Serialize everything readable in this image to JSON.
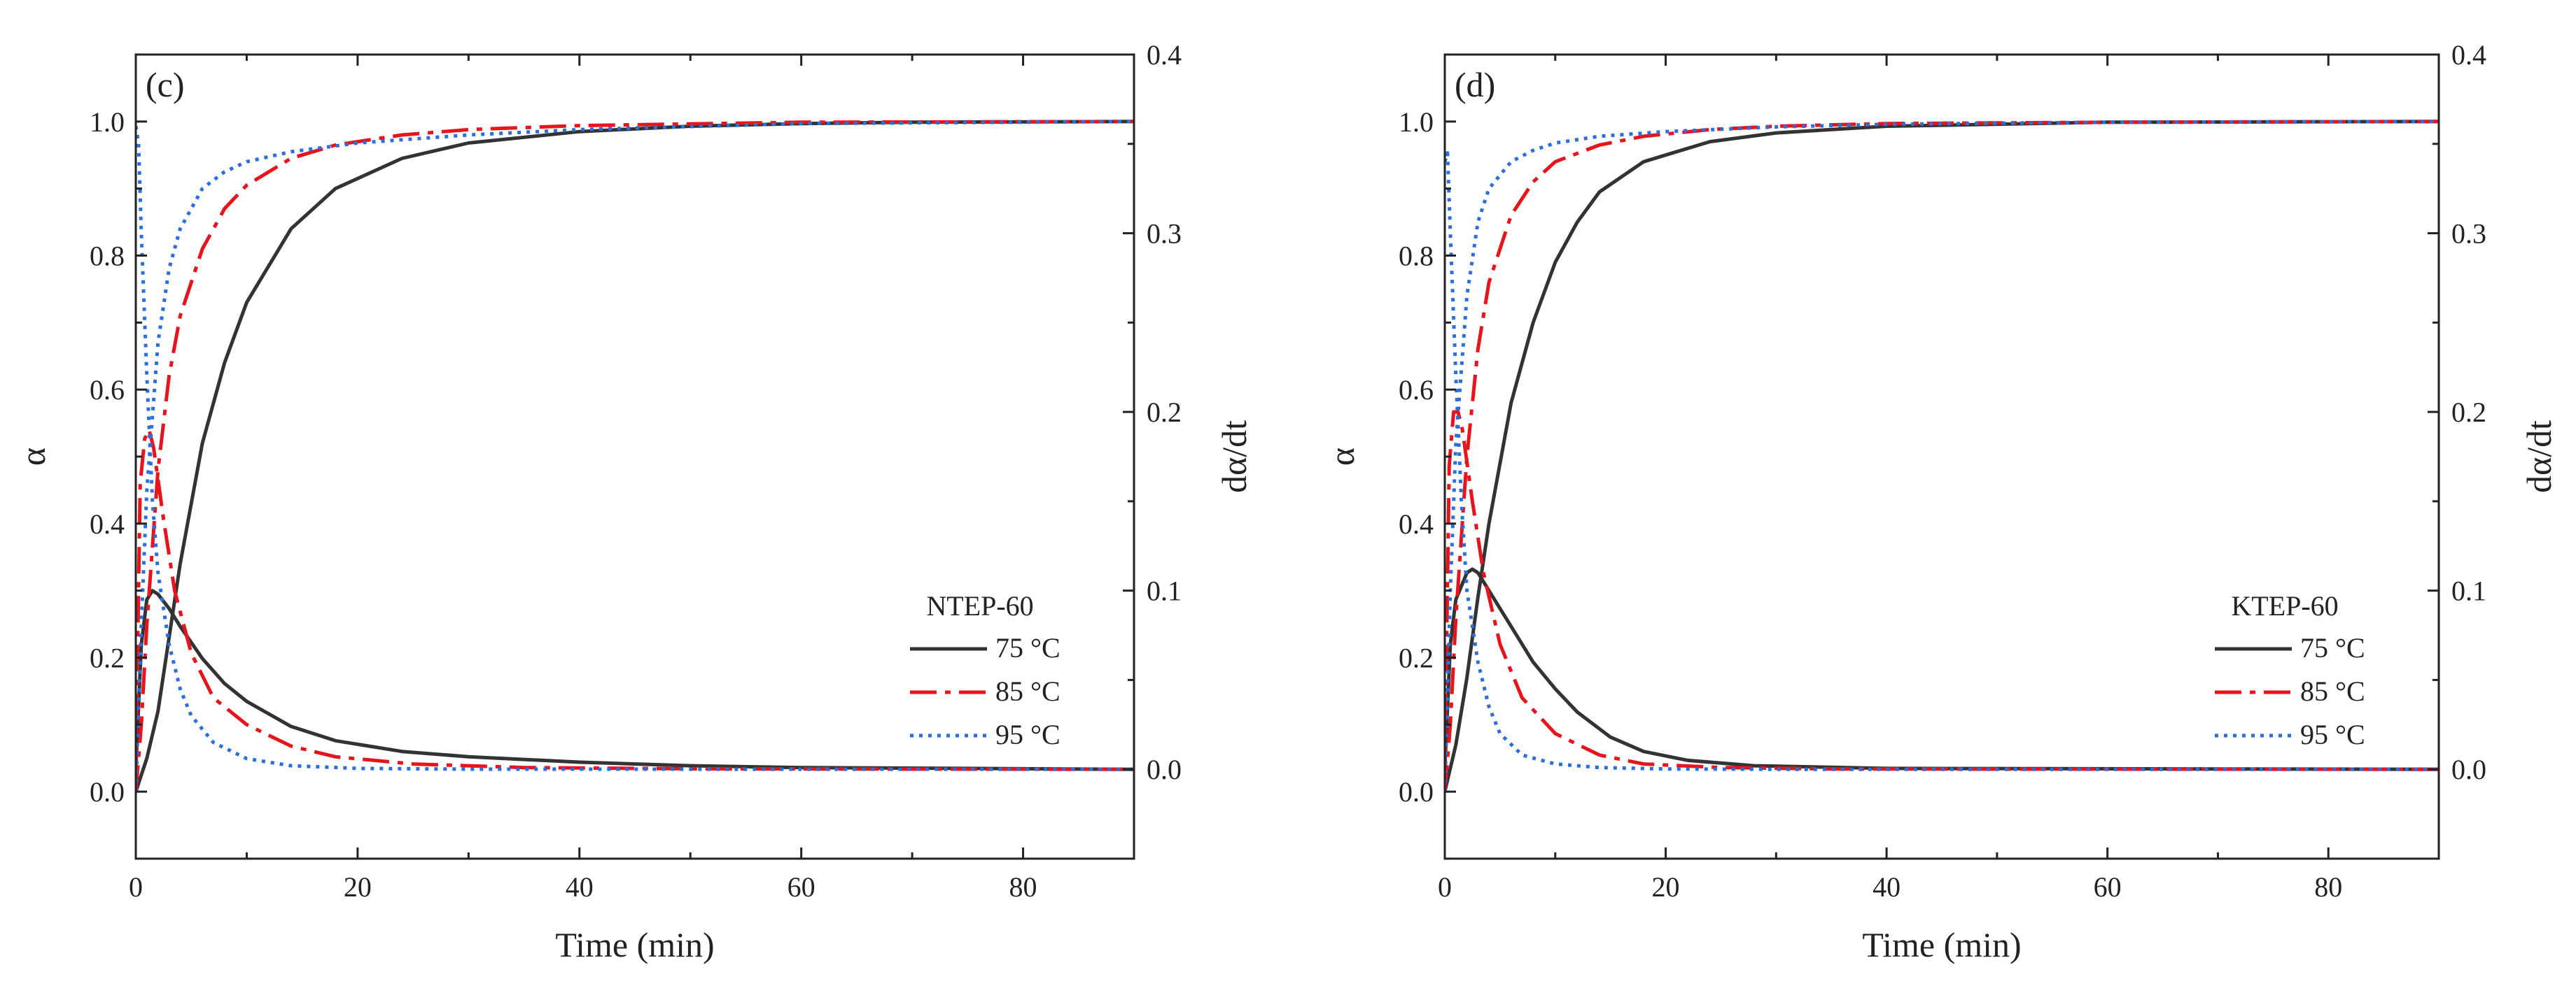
{
  "chart_data": [
    {
      "type": "line",
      "panel_label": "(c)",
      "xlabel": "Time (min)",
      "ylabel": "α",
      "ylabel_right": "dα/dt",
      "xlim": [
        0,
        90
      ],
      "ylim": [
        -0.1,
        1.1
      ],
      "ylim_right": [
        -0.05,
        0.4
      ],
      "x_ticks": [
        0,
        20,
        40,
        60,
        80
      ],
      "y_ticks": [
        0.0,
        0.2,
        0.4,
        0.6,
        0.8,
        1.0
      ],
      "y_tick_labels": [
        "0.0",
        "0.2",
        "0.4",
        "0.6",
        "0.8",
        "1.0"
      ],
      "y_right_ticks": [
        0.0,
        0.1,
        0.2,
        0.3,
        0.4
      ],
      "y_right_tick_labels": [
        "0.0",
        "0.1",
        "0.2",
        "0.3",
        "0.4"
      ],
      "legend_title": "NTEP-60",
      "legend_position": "lower-right",
      "series": [
        {
          "name": "75 °C",
          "color": "#333333",
          "dash": "solid",
          "alpha_x": [
            0,
            1,
            2,
            4,
            6,
            8,
            10,
            14,
            18,
            24,
            30,
            40,
            50,
            60,
            70,
            90
          ],
          "alpha": [
            0.0,
            0.05,
            0.12,
            0.34,
            0.52,
            0.64,
            0.73,
            0.84,
            0.9,
            0.945,
            0.968,
            0.985,
            0.993,
            0.997,
            0.999,
            1.0
          ],
          "rate_x": [
            0,
            0.5,
            1,
            1.5,
            2,
            3,
            4,
            6,
            8,
            10,
            14,
            18,
            24,
            30,
            40,
            50,
            60,
            90
          ],
          "rate": [
            0.0,
            0.07,
            0.095,
            0.1,
            0.098,
            0.09,
            0.08,
            0.062,
            0.048,
            0.038,
            0.024,
            0.016,
            0.01,
            0.007,
            0.004,
            0.002,
            0.001,
            0.0
          ]
        },
        {
          "name": "85 °C",
          "color": "#e8141c",
          "dash": "dashdot",
          "alpha_x": [
            0,
            0.5,
            1,
            2,
            3,
            4,
            6,
            8,
            10,
            14,
            18,
            24,
            30,
            40,
            60,
            90
          ],
          "alpha": [
            0.0,
            0.1,
            0.25,
            0.48,
            0.62,
            0.71,
            0.81,
            0.87,
            0.905,
            0.945,
            0.965,
            0.98,
            0.988,
            0.994,
            0.999,
            1.0
          ],
          "rate_x": [
            0,
            0.4,
            0.8,
            1.2,
            1.6,
            2.5,
            3.5,
            5,
            7,
            10,
            14,
            18,
            25,
            35,
            50,
            90
          ],
          "rate": [
            0.0,
            0.16,
            0.185,
            0.19,
            0.18,
            0.14,
            0.1,
            0.065,
            0.04,
            0.025,
            0.013,
            0.007,
            0.003,
            0.001,
            0.0003,
            0.0
          ]
        },
        {
          "name": "95 °C",
          "color": "#2a6fdb",
          "dash": "dotted",
          "alpha_x": [
            0,
            0.5,
            1,
            2,
            3,
            4,
            6,
            8,
            10,
            14,
            20,
            30,
            40,
            60,
            90
          ],
          "alpha": [
            0.0,
            0.25,
            0.45,
            0.67,
            0.78,
            0.84,
            0.9,
            0.925,
            0.94,
            0.955,
            0.968,
            0.98,
            0.988,
            0.997,
            1.0
          ],
          "rate_x": [
            0,
            0.25,
            0.5,
            1,
            1.5,
            2,
            3,
            4,
            5,
            7,
            10,
            14,
            20,
            30,
            90
          ],
          "rate": [
            0.36,
            0.35,
            0.3,
            0.22,
            0.15,
            0.11,
            0.07,
            0.045,
            0.03,
            0.015,
            0.006,
            0.002,
            0.0005,
            0.0001,
            0.0
          ]
        }
      ]
    },
    {
      "type": "line",
      "panel_label": "(d)",
      "xlabel": "Time (min)",
      "ylabel": "α",
      "ylabel_right": "dα/dt",
      "xlim": [
        0,
        90
      ],
      "ylim": [
        -0.1,
        1.1
      ],
      "ylim_right": [
        -0.05,
        0.4
      ],
      "x_ticks": [
        0,
        20,
        40,
        60,
        80
      ],
      "y_ticks": [
        0.0,
        0.2,
        0.4,
        0.6,
        0.8,
        1.0
      ],
      "y_tick_labels": [
        "0.0",
        "0.2",
        "0.4",
        "0.6",
        "0.8",
        "1.0"
      ],
      "y_right_ticks": [
        0.0,
        0.1,
        0.2,
        0.3,
        0.4
      ],
      "y_right_tick_labels": [
        "0.0",
        "0.1",
        "0.2",
        "0.3",
        "0.4"
      ],
      "legend_title": "KTEP-60",
      "legend_position": "lower-right",
      "series": [
        {
          "name": "75 °C",
          "color": "#333333",
          "dash": "solid",
          "alpha_x": [
            0,
            1,
            2,
            3,
            4,
            6,
            8,
            10,
            12,
            14,
            18,
            24,
            30,
            40,
            60,
            90
          ],
          "alpha": [
            0.0,
            0.07,
            0.17,
            0.29,
            0.4,
            0.58,
            0.7,
            0.79,
            0.85,
            0.895,
            0.94,
            0.97,
            0.983,
            0.993,
            0.999,
            1.0
          ],
          "rate_x": [
            0,
            0.5,
            1,
            2,
            2.5,
            3,
            4,
            6,
            8,
            10,
            12,
            15,
            18,
            22,
            28,
            40,
            90
          ],
          "rate": [
            0.0,
            0.07,
            0.095,
            0.11,
            0.112,
            0.11,
            0.1,
            0.08,
            0.06,
            0.045,
            0.032,
            0.018,
            0.01,
            0.005,
            0.002,
            0.0005,
            0.0
          ]
        },
        {
          "name": "85 °C",
          "color": "#e8141c",
          "dash": "dashdot",
          "alpha_x": [
            0,
            0.5,
            1,
            2,
            3,
            4,
            6,
            8,
            10,
            14,
            18,
            24,
            30,
            40,
            60,
            90
          ],
          "alpha": [
            0.0,
            0.1,
            0.26,
            0.5,
            0.66,
            0.76,
            0.86,
            0.91,
            0.94,
            0.965,
            0.978,
            0.988,
            0.993,
            0.997,
            0.999,
            1.0
          ],
          "rate_x": [
            0,
            0.4,
            0.8,
            1.2,
            1.6,
            2.5,
            3.5,
            5,
            7,
            10,
            14,
            18,
            25,
            35,
            90
          ],
          "rate": [
            0.0,
            0.17,
            0.2,
            0.2,
            0.19,
            0.15,
            0.11,
            0.07,
            0.04,
            0.02,
            0.008,
            0.003,
            0.001,
            0.0002,
            0.0
          ]
        },
        {
          "name": "95 °C",
          "color": "#2a6fdb",
          "dash": "dotted",
          "alpha_x": [
            0,
            0.5,
            1,
            2,
            3,
            4,
            6,
            8,
            10,
            14,
            20,
            30,
            40,
            60,
            90
          ],
          "alpha": [
            0.0,
            0.3,
            0.52,
            0.74,
            0.85,
            0.9,
            0.94,
            0.957,
            0.968,
            0.978,
            0.985,
            0.992,
            0.996,
            0.999,
            1.0
          ],
          "rate_x": [
            0,
            0.25,
            0.5,
            1,
            1.5,
            2,
            3,
            4,
            5,
            7,
            10,
            14,
            20,
            30,
            90
          ],
          "rate": [
            0.34,
            0.345,
            0.3,
            0.22,
            0.15,
            0.1,
            0.06,
            0.035,
            0.02,
            0.008,
            0.003,
            0.001,
            0.0002,
            0.0,
            0.0
          ]
        }
      ]
    }
  ]
}
